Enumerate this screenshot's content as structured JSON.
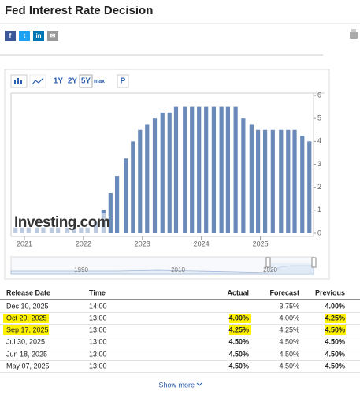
{
  "header": {
    "title": "Fed Interest Rate Decision",
    "share_buttons": [
      {
        "label": "f",
        "color": "#3b5998"
      },
      {
        "label": "t",
        "color": "#1da1f2"
      },
      {
        "label": "in",
        "color": "#0077b5"
      },
      {
        "label": "✉",
        "color": "#9a9a9a"
      }
    ]
  },
  "toolbar": [
    "1Y",
    "2Y",
    "5Y",
    "max",
    "P"
  ],
  "chart_data": {
    "type": "bar",
    "color": "#6a8bb9",
    "watermark": "Investing.com",
    "x": [
      2020.85,
      2020.96,
      2021.07,
      2021.21,
      2021.32,
      2021.46,
      2021.57,
      2021.73,
      2021.84,
      2021.96,
      2022.07,
      2022.21,
      2022.34,
      2022.46,
      2022.57,
      2022.72,
      2022.84,
      2022.96,
      2023.08,
      2023.21,
      2023.34,
      2023.46,
      2023.57,
      2023.72,
      2023.84,
      2023.96,
      2024.08,
      2024.21,
      2024.34,
      2024.45,
      2024.58,
      2024.71,
      2024.85,
      2024.96,
      2025.08,
      2025.21,
      2025.35,
      2025.47,
      2025.58,
      2025.71,
      2025.83
    ],
    "values": [
      0.25,
      0.25,
      0.25,
      0.25,
      0.25,
      0.25,
      0.25,
      0.25,
      0.25,
      0.25,
      0.25,
      0.5,
      1,
      1.75,
      2.5,
      3.25,
      4,
      4.5,
      4.75,
      5,
      5.25,
      5.25,
      5.5,
      5.5,
      5.5,
      5.5,
      5.5,
      5.5,
      5.5,
      5.5,
      5.5,
      5,
      4.75,
      4.5,
      4.5,
      4.5,
      4.5,
      4.5,
      4.5,
      4.25,
      4
    ],
    "xlim": [
      2020.8,
      2025.9
    ],
    "xticks": [
      2021,
      2022,
      2023,
      2024,
      2025
    ],
    "ylim": [
      0,
      6
    ],
    "yticks": [
      0,
      1,
      2,
      3,
      4,
      5,
      6
    ]
  },
  "navigator": {
    "labels": [
      "1990",
      "2010",
      "2020"
    ]
  },
  "table": {
    "columns": [
      "Release Date",
      "Time",
      "Actual",
      "Forecast",
      "Previous"
    ],
    "rows": [
      [
        "Dec 10, 2025",
        "14:00",
        null,
        "3.75%",
        "4.00%"
      ],
      [
        "Oct 29, 2025",
        "13:00",
        "4.00%",
        "4.00%",
        "4.25%"
      ],
      [
        "Sep 17, 2025",
        "13:00",
        "4.25%",
        "4.25%",
        "4.50%"
      ],
      [
        "Jul 30, 2025",
        "13:00",
        "4.50%",
        "4.50%",
        "4.50%"
      ],
      [
        "Jun 18, 2025",
        "13:00",
        "4.50%",
        "4.50%",
        "4.50%"
      ],
      [
        "May 07, 2025",
        "13:00",
        "4.50%",
        "4.50%",
        "4.50%"
      ]
    ],
    "highlighted_rows": [
      1,
      2
    ],
    "highlight_color": "#fff200"
  },
  "show_more": "Show more"
}
